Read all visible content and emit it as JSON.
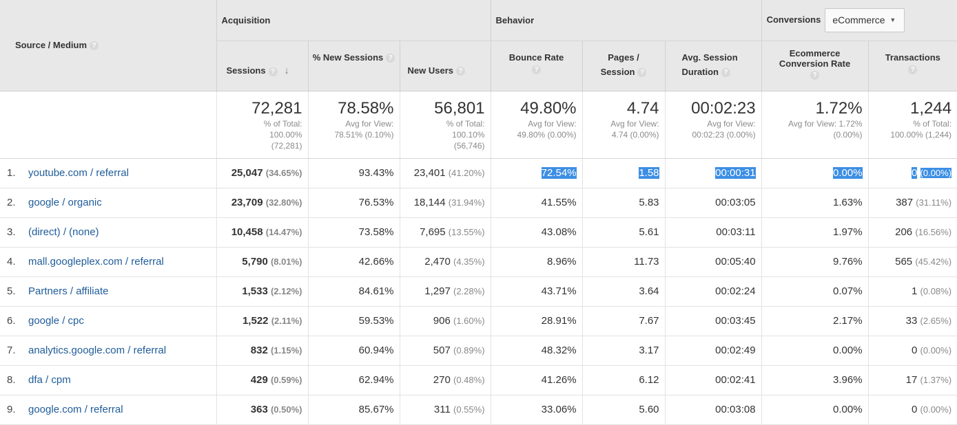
{
  "header": {
    "source_medium": "Source / Medium",
    "groups": {
      "acquisition": "Acquisition",
      "behavior": "Behavior",
      "conversions": "Conversions"
    },
    "dropdown": {
      "value": "eCommerce"
    },
    "columns": {
      "sessions": "Sessions",
      "new_sessions": "% New Sessions",
      "new_users": "New Users",
      "bounce_rate": "Bounce Rate",
      "pages_session_1": "Pages /",
      "pages_session_2": "Session",
      "avg_dur_1": "Avg. Session",
      "avg_dur_2": "Duration",
      "ecr_1": "Ecommerce",
      "ecr_2": "Conversion Rate",
      "transactions": "Transactions"
    },
    "help_glyph": "?"
  },
  "totals": {
    "sessions": {
      "value": "72,281",
      "l1": "% of Total:",
      "l2": "100.00%",
      "l3": "(72,281)"
    },
    "new_sessions": {
      "value": "78.58%",
      "l1": "Avg for View:",
      "l2": "78.51% (0.10%)"
    },
    "new_users": {
      "value": "56,801",
      "l1": "% of Total:",
      "l2": "100.10%",
      "l3": "(56,746)"
    },
    "bounce_rate": {
      "value": "49.80%",
      "l1": "Avg for View:",
      "l2": "49.80% (0.00%)"
    },
    "pages_session": {
      "value": "4.74",
      "l1": "Avg for View:",
      "l2": "4.74 (0.00%)"
    },
    "avg_duration": {
      "value": "00:02:23",
      "l1": "Avg for View:",
      "l2": "00:02:23 (0.00%)"
    },
    "ecr": {
      "value": "1.72%",
      "l1": "Avg for View: 1.72%",
      "l2": "(0.00%)"
    },
    "transactions": {
      "value": "1,244",
      "l1": "% of Total:",
      "l2": "100.00% (1,244)"
    }
  },
  "rows": [
    {
      "n": "1.",
      "source": "youtube.com / referral",
      "sessions": "25,047",
      "sessions_pct": "(34.65%)",
      "new_sessions": "93.43%",
      "new_users": "23,401",
      "new_users_pct": "(41.20%)",
      "bounce": "72.54%",
      "pages": "1.58",
      "duration": "00:00:31",
      "ecr": "0.00%",
      "trans": "0",
      "trans_pct": "(0.00%)"
    },
    {
      "n": "2.",
      "source": "google / organic",
      "sessions": "23,709",
      "sessions_pct": "(32.80%)",
      "new_sessions": "76.53%",
      "new_users": "18,144",
      "new_users_pct": "(31.94%)",
      "bounce": "41.55%",
      "pages": "5.83",
      "duration": "00:03:05",
      "ecr": "1.63%",
      "trans": "387",
      "trans_pct": "(31.11%)"
    },
    {
      "n": "3.",
      "source": "(direct) / (none)",
      "sessions": "10,458",
      "sessions_pct": "(14.47%)",
      "new_sessions": "73.58%",
      "new_users": "7,695",
      "new_users_pct": "(13.55%)",
      "bounce": "43.08%",
      "pages": "5.61",
      "duration": "00:03:11",
      "ecr": "1.97%",
      "trans": "206",
      "trans_pct": "(16.56%)"
    },
    {
      "n": "4.",
      "source": "mall.googleplex.com / referral",
      "sessions": "5,790",
      "sessions_pct": "(8.01%)",
      "new_sessions": "42.66%",
      "new_users": "2,470",
      "new_users_pct": "(4.35%)",
      "bounce": "8.96%",
      "pages": "11.73",
      "duration": "00:05:40",
      "ecr": "9.76%",
      "trans": "565",
      "trans_pct": "(45.42%)"
    },
    {
      "n": "5.",
      "source": "Partners / affiliate",
      "sessions": "1,533",
      "sessions_pct": "(2.12%)",
      "new_sessions": "84.61%",
      "new_users": "1,297",
      "new_users_pct": "(2.28%)",
      "bounce": "43.71%",
      "pages": "3.64",
      "duration": "00:02:24",
      "ecr": "0.07%",
      "trans": "1",
      "trans_pct": "(0.08%)"
    },
    {
      "n": "6.",
      "source": "google / cpc",
      "sessions": "1,522",
      "sessions_pct": "(2.11%)",
      "new_sessions": "59.53%",
      "new_users": "906",
      "new_users_pct": "(1.60%)",
      "bounce": "28.91%",
      "pages": "7.67",
      "duration": "00:03:45",
      "ecr": "2.17%",
      "trans": "33",
      "trans_pct": "(2.65%)"
    },
    {
      "n": "7.",
      "source": "analytics.google.com / referral",
      "sessions": "832",
      "sessions_pct": "(1.15%)",
      "new_sessions": "60.94%",
      "new_users": "507",
      "new_users_pct": "(0.89%)",
      "bounce": "48.32%",
      "pages": "3.17",
      "duration": "00:02:49",
      "ecr": "0.00%",
      "trans": "0",
      "trans_pct": "(0.00%)"
    },
    {
      "n": "8.",
      "source": "dfa / cpm",
      "sessions": "429",
      "sessions_pct": "(0.59%)",
      "new_sessions": "62.94%",
      "new_users": "270",
      "new_users_pct": "(0.48%)",
      "bounce": "41.26%",
      "pages": "6.12",
      "duration": "00:02:41",
      "ecr": "3.96%",
      "trans": "17",
      "trans_pct": "(1.37%)"
    },
    {
      "n": "9.",
      "source": "google.com / referral",
      "sessions": "363",
      "sessions_pct": "(0.50%)",
      "new_sessions": "85.67%",
      "new_users": "311",
      "new_users_pct": "(0.55%)",
      "bounce": "33.06%",
      "pages": "5.60",
      "duration": "00:03:08",
      "ecr": "0.00%",
      "trans": "0",
      "trans_pct": "(0.00%)"
    }
  ]
}
